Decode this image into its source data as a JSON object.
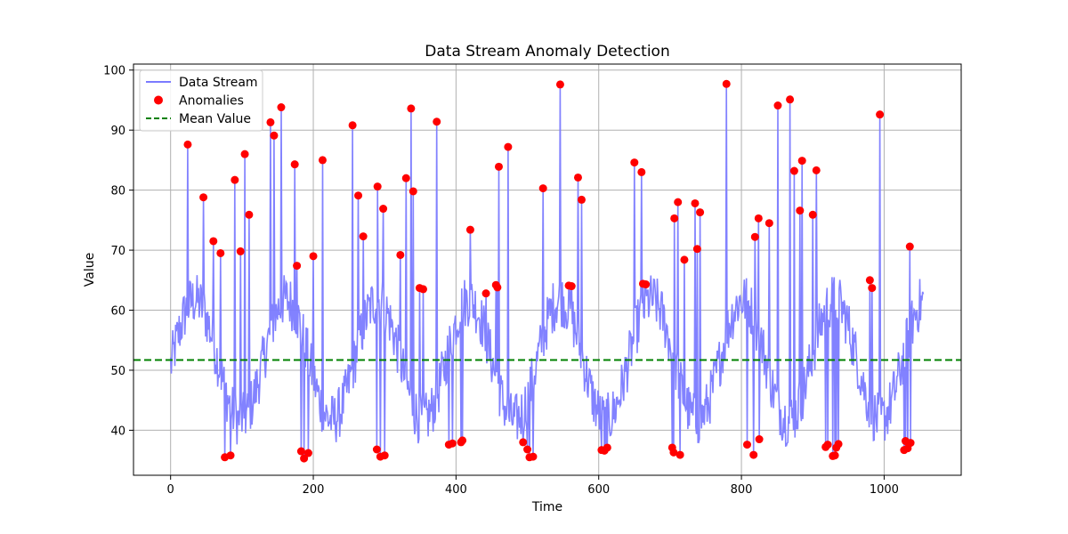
{
  "chart_data": {
    "type": "line",
    "title": "Data Stream Anomaly Detection",
    "xlabel": "Time",
    "ylabel": "Value",
    "xlim": [
      -52,
      1108
    ],
    "ylim": [
      32.5,
      101
    ],
    "xticks": [
      0,
      200,
      400,
      600,
      800,
      1000
    ],
    "yticks": [
      40,
      50,
      60,
      70,
      80,
      90,
      100
    ],
    "grid": true,
    "legend_position": "top-left",
    "mean_value": 51.7,
    "n_points": 1056,
    "legend": [
      {
        "label": "Data Stream",
        "kind": "line",
        "color": "#7b7bff"
      },
      {
        "label": "Anomalies",
        "kind": "marker",
        "color": "#ff0000"
      },
      {
        "label": "Mean Value",
        "kind": "dashed",
        "color": "#008000"
      }
    ],
    "series": [
      {
        "name": "Data Stream",
        "color": "#7b7bff",
        "note_shape": "periodic signal (period ~130) around mean with noise; anomaly values listed below",
        "period": 128,
        "center": 51.7,
        "amplitude": 10
      },
      {
        "name": "Anomalies",
        "color": "#ff0000",
        "points": [
          [
            24,
            87.6
          ],
          [
            46,
            78.8
          ],
          [
            60,
            71.5
          ],
          [
            70,
            69.5
          ],
          [
            76,
            35.5
          ],
          [
            84,
            35.8
          ],
          [
            90,
            81.7
          ],
          [
            98,
            69.8
          ],
          [
            104,
            86.0
          ],
          [
            110,
            75.9
          ],
          [
            140,
            91.3
          ],
          [
            145,
            89.1
          ],
          [
            155,
            93.8
          ],
          [
            174,
            84.3
          ],
          [
            177,
            67.4
          ],
          [
            183,
            36.5
          ],
          [
            187,
            35.3
          ],
          [
            193,
            36.2
          ],
          [
            200,
            69.0
          ],
          [
            213,
            85.0
          ],
          [
            255,
            90.8
          ],
          [
            263,
            79.1
          ],
          [
            270,
            72.3
          ],
          [
            290,
            80.6
          ],
          [
            289,
            36.8
          ],
          [
            294,
            35.6
          ],
          [
            298,
            76.9
          ],
          [
            300,
            35.8
          ],
          [
            322,
            69.2
          ],
          [
            330,
            82.0
          ],
          [
            337,
            93.6
          ],
          [
            340,
            79.8
          ],
          [
            349,
            63.7
          ],
          [
            354,
            63.5
          ],
          [
            373,
            91.4
          ],
          [
            390,
            37.6
          ],
          [
            395,
            37.8
          ],
          [
            407,
            38.0
          ],
          [
            409,
            38.3
          ],
          [
            420,
            73.4
          ],
          [
            442,
            62.8
          ],
          [
            456,
            64.2
          ],
          [
            458,
            63.8
          ],
          [
            460,
            83.9
          ],
          [
            473,
            87.2
          ],
          [
            494,
            38.0
          ],
          [
            500,
            36.8
          ],
          [
            503,
            35.5
          ],
          [
            508,
            35.6
          ],
          [
            522,
            80.3
          ],
          [
            546,
            97.6
          ],
          [
            558,
            64.1
          ],
          [
            562,
            64.0
          ],
          [
            571,
            82.1
          ],
          [
            576,
            78.4
          ],
          [
            604,
            36.7
          ],
          [
            608,
            36.6
          ],
          [
            612,
            37.1
          ],
          [
            650,
            84.6
          ],
          [
            660,
            83.0
          ],
          [
            662,
            64.4
          ],
          [
            666,
            64.3
          ],
          [
            703,
            37.1
          ],
          [
            705,
            36.3
          ],
          [
            706,
            75.3
          ],
          [
            711,
            78.0
          ],
          [
            714,
            35.9
          ],
          [
            720,
            68.4
          ],
          [
            735,
            77.8
          ],
          [
            738,
            70.2
          ],
          [
            742,
            76.3
          ],
          [
            779,
            97.7
          ],
          [
            808,
            37.6
          ],
          [
            817,
            35.9
          ],
          [
            819,
            72.2
          ],
          [
            824,
            75.3
          ],
          [
            825,
            38.5
          ],
          [
            839,
            74.5
          ],
          [
            851,
            94.1
          ],
          [
            868,
            95.1
          ],
          [
            874,
            83.2
          ],
          [
            882,
            76.6
          ],
          [
            885,
            84.9
          ],
          [
            900,
            75.9
          ],
          [
            905,
            83.3
          ],
          [
            918,
            37.2
          ],
          [
            921,
            37.6
          ],
          [
            928,
            35.7
          ],
          [
            931,
            35.8
          ],
          [
            933,
            37.1
          ],
          [
            936,
            37.7
          ],
          [
            980,
            65.0
          ],
          [
            983,
            63.7
          ],
          [
            994,
            92.6
          ],
          [
            1028,
            36.7
          ],
          [
            1030,
            38.2
          ],
          [
            1033,
            37.0
          ],
          [
            1036,
            70.6
          ],
          [
            1037,
            37.9
          ]
        ]
      },
      {
        "name": "Mean Value",
        "color": "#008000",
        "y": 51.7
      }
    ]
  }
}
